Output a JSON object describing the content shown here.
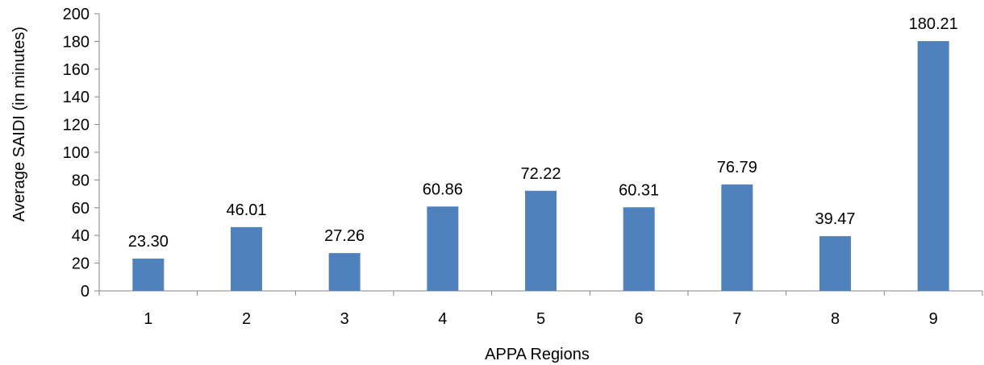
{
  "chart_data": {
    "type": "bar",
    "title": "",
    "xlabel": "APPA Regions",
    "ylabel": "Average SAIDI (in minutes)",
    "categories": [
      "1",
      "2",
      "3",
      "4",
      "5",
      "6",
      "7",
      "8",
      "9"
    ],
    "values": [
      23.3,
      46.01,
      27.26,
      60.86,
      72.22,
      60.31,
      76.79,
      39.47,
      180.21
    ],
    "data_labels": [
      "23.30",
      "46.01",
      "27.26",
      "60.86",
      "72.22",
      "60.31",
      "76.79",
      "39.47",
      "180.21"
    ],
    "ylim": [
      0,
      200
    ],
    "yticks": [
      0,
      20,
      40,
      60,
      80,
      100,
      120,
      140,
      160,
      180,
      200
    ],
    "grid": false,
    "legend": "none",
    "bar_color": "#4F81BD",
    "axis_color": "#868686"
  }
}
